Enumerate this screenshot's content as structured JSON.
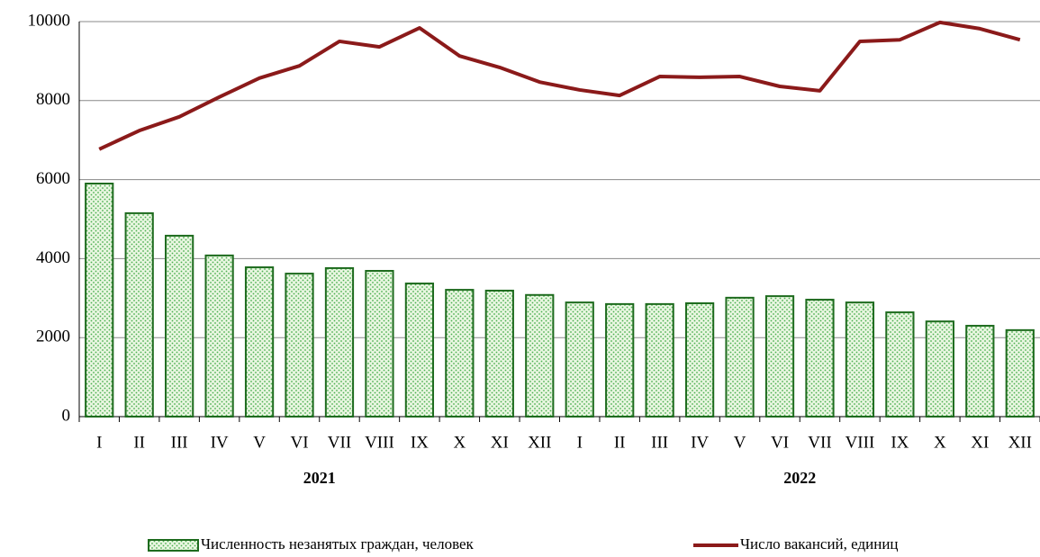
{
  "chart_data": {
    "type": "bar",
    "categories": [
      "I",
      "II",
      "III",
      "IV",
      "V",
      "VI",
      "VII",
      "VIII",
      "IX",
      "X",
      "XI",
      "XII",
      "I",
      "II",
      "III",
      "IV",
      "V",
      "VI",
      "VII",
      "VIII",
      "IX",
      "X",
      "XI",
      "XII"
    ],
    "groups": [
      "2021",
      "2022"
    ],
    "series": [
      {
        "name": "Численность незанятых граждан, человек",
        "type": "bar",
        "color": "#1e6b1e",
        "values": [
          5900,
          5150,
          4580,
          4080,
          3780,
          3620,
          3760,
          3690,
          3370,
          3210,
          3190,
          3080,
          2890,
          2850,
          2850,
          2870,
          3010,
          3050,
          2960,
          2890,
          2640,
          2410,
          2300,
          2190
        ]
      },
      {
        "name": "Число вакансий, единиц",
        "type": "line",
        "color": "#8b1a1a",
        "values": [
          6770,
          7240,
          7590,
          8090,
          8570,
          8880,
          9500,
          9360,
          9840,
          9130,
          8840,
          8470,
          8270,
          8130,
          8610,
          8590,
          8610,
          8360,
          8250,
          9500,
          9540,
          9980,
          9820,
          9540
        ]
      }
    ],
    "ylim": [
      0,
      10000
    ],
    "yticks": [
      0,
      2000,
      4000,
      6000,
      8000,
      10000
    ],
    "grid": true
  }
}
